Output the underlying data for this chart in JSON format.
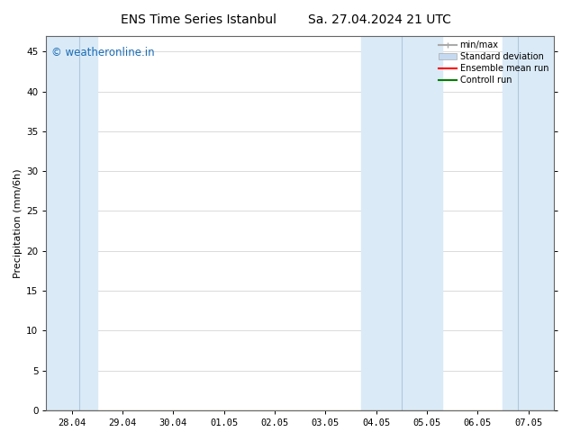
{
  "title_left": "ENS Time Series Istanbul",
  "title_right": "Sa. 27.04.2024 21 UTC",
  "ylabel": "Precipitation (mm/6h)",
  "xlim_dates": [
    "28.04",
    "29.04",
    "30.04",
    "01.05",
    "02.05",
    "03.05",
    "04.05",
    "05.05",
    "06.05",
    "07.05"
  ],
  "ylim": [
    0,
    47
  ],
  "yticks": [
    0,
    5,
    10,
    15,
    20,
    25,
    30,
    35,
    40,
    45
  ],
  "background_color": "#ffffff",
  "band_color": "#daeaf7",
  "bands": [
    {
      "xmin": -0.5,
      "xmax": 0.5
    },
    {
      "xmin": 5.5,
      "xmax": 7.5
    },
    {
      "xmin": 8.5,
      "xmax": 9.5
    }
  ],
  "std_bands": [
    {
      "xmin": 6.0,
      "xmax": 7.0
    }
  ],
  "watermark": "© weatheronline.in",
  "watermark_color": "#1a6cb5",
  "legend_items": [
    {
      "label": "min/max",
      "color": "#aaaaaa"
    },
    {
      "label": "Standard deviation",
      "color": "#c5daf0"
    },
    {
      "label": "Ensemble mean run",
      "color": "#ff0000"
    },
    {
      "label": "Controll run",
      "color": "#008000"
    }
  ],
  "title_fontsize": 10,
  "tick_fontsize": 7.5,
  "ylabel_fontsize": 8,
  "watermark_fontsize": 8.5,
  "legend_fontsize": 7
}
